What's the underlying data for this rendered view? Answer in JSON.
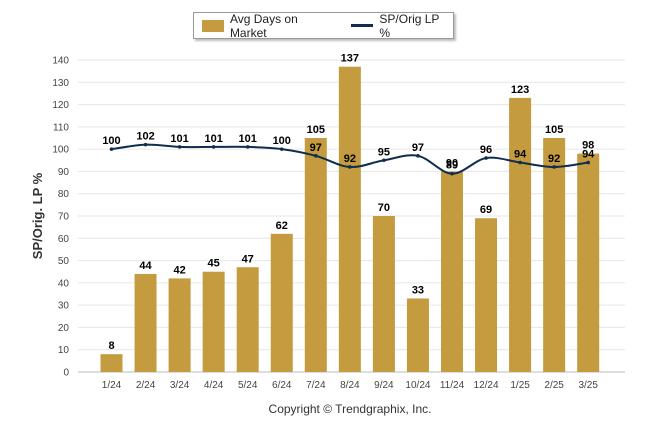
{
  "legend": {
    "bar_label": "Avg Days on Market",
    "line_label": "SP/Orig LP %"
  },
  "footer": {
    "copyright": "Copyright © Trendgraphix, Inc."
  },
  "colors": {
    "bar": "#C49B3E",
    "line": "#0F2D4F",
    "grid": "#E6E6E6",
    "axis_text": "#444444",
    "label_text": "#000000"
  },
  "chart_data": {
    "type": "bar",
    "title": "",
    "xlabel": "",
    "ylabel": "SP/Orig. LP %",
    "ylim": [
      0,
      140
    ],
    "yticks": [
      0,
      10,
      20,
      30,
      40,
      50,
      60,
      70,
      80,
      90,
      100,
      110,
      120,
      130,
      140
    ],
    "grid": true,
    "legend_position": "top-center",
    "categories": [
      "1/24",
      "2/24",
      "3/24",
      "4/24",
      "5/24",
      "6/24",
      "7/24",
      "8/24",
      "9/24",
      "10/24",
      "11/24",
      "12/24",
      "1/25",
      "2/25",
      "3/25"
    ],
    "series": [
      {
        "name": "Avg Days on Market",
        "type": "bar",
        "values": [
          8,
          44,
          42,
          45,
          47,
          62,
          105,
          137,
          70,
          33,
          90,
          69,
          123,
          105,
          98
        ]
      },
      {
        "name": "SP/Orig LP %",
        "type": "line",
        "values": [
          100,
          102,
          101,
          101,
          101,
          100,
          97,
          92,
          95,
          97,
          89,
          96,
          94,
          92,
          94
        ]
      }
    ]
  }
}
